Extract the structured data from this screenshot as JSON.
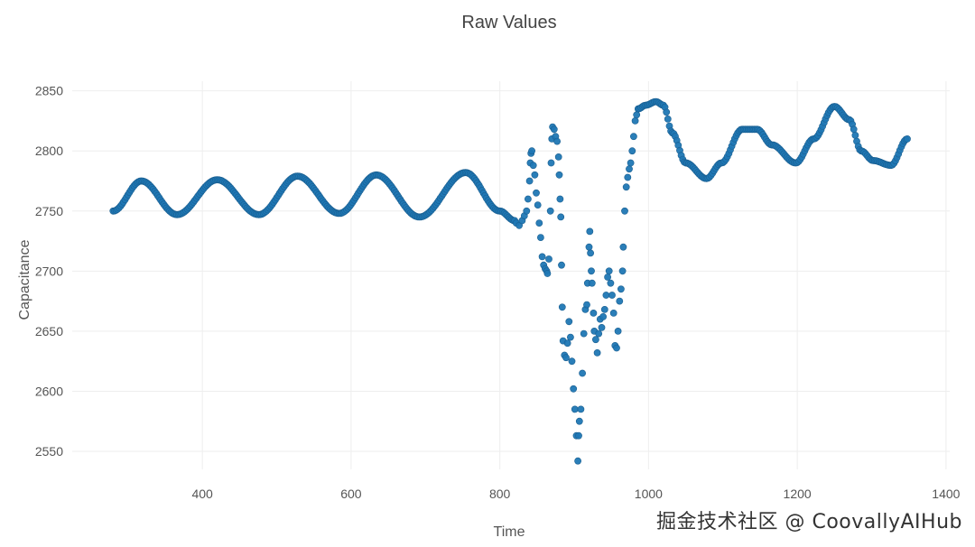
{
  "chart_data": {
    "type": "scatter",
    "title": "Raw Values",
    "xlabel": "Time",
    "ylabel": "Capacitance",
    "xlim": [
      225,
      1405
    ],
    "ylim": [
      2535,
      2858
    ],
    "xticks": [
      400,
      600,
      800,
      1000,
      1200,
      1400
    ],
    "yticks": [
      2550,
      2600,
      2650,
      2700,
      2750,
      2800,
      2850
    ],
    "grid": true,
    "color": "#1f77b4",
    "series": [
      {
        "segments": [
          {
            "kind": "wave",
            "x_start": 280,
            "x_end": 820,
            "step": 2,
            "anchors": [
              [
                280,
                2750
              ],
              [
                318,
                2775
              ],
              [
                366,
                2747
              ],
              [
                420,
                2776
              ],
              [
                476,
                2747
              ],
              [
                528,
                2779
              ],
              [
                584,
                2748
              ],
              [
                634,
                2780
              ],
              [
                692,
                2745
              ],
              [
                754,
                2782
              ],
              [
                800,
                2750
              ],
              [
                820,
                2742
              ]
            ]
          },
          {
            "kind": "points",
            "points": [
              [
                822,
                2740
              ],
              [
                826,
                2738
              ],
              [
                830,
                2742
              ],
              [
                833,
                2746
              ],
              [
                836,
                2750
              ],
              [
                838,
                2760
              ],
              [
                840,
                2775
              ],
              [
                841,
                2790
              ],
              [
                842,
                2798
              ],
              [
                843,
                2800
              ],
              [
                845,
                2788
              ],
              [
                847,
                2780
              ],
              [
                849,
                2765
              ],
              [
                851,
                2755
              ],
              [
                853,
                2740
              ],
              [
                855,
                2728
              ],
              [
                857,
                2712
              ],
              [
                859,
                2705
              ],
              [
                861,
                2702
              ],
              [
                863,
                2700
              ],
              [
                864,
                2698
              ],
              [
                866,
                2710
              ],
              [
                868,
                2750
              ],
              [
                869,
                2790
              ],
              [
                870,
                2810
              ],
              [
                871,
                2820
              ],
              [
                873,
                2818
              ],
              [
                875,
                2812
              ],
              [
                877,
                2808
              ],
              [
                879,
                2795
              ],
              [
                880,
                2780
              ],
              [
                881,
                2760
              ],
              [
                882,
                2745
              ],
              [
                883,
                2705
              ],
              [
                884,
                2670
              ],
              [
                885,
                2642
              ],
              [
                887,
                2630
              ],
              [
                889,
                2628
              ],
              [
                891,
                2640
              ],
              [
                893,
                2658
              ],
              [
                895,
                2645
              ],
              [
                897,
                2625
              ],
              [
                899,
                2602
              ],
              [
                901,
                2585
              ],
              [
                903,
                2563
              ],
              [
                905,
                2542
              ],
              [
                906,
                2563
              ],
              [
                907,
                2575
              ],
              [
                909,
                2585
              ],
              [
                911,
                2615
              ],
              [
                913,
                2648
              ],
              [
                915,
                2668
              ],
              [
                917,
                2672
              ],
              [
                918,
                2690
              ],
              [
                920,
                2720
              ],
              [
                921,
                2733
              ],
              [
                922,
                2715
              ],
              [
                923,
                2700
              ],
              [
                924,
                2690
              ],
              [
                926,
                2665
              ],
              [
                927,
                2650
              ],
              [
                929,
                2643
              ],
              [
                931,
                2632
              ],
              [
                933,
                2648
              ],
              [
                935,
                2660
              ],
              [
                937,
                2653
              ],
              [
                939,
                2662
              ],
              [
                941,
                2668
              ],
              [
                943,
                2680
              ],
              [
                945,
                2695
              ],
              [
                947,
                2700
              ],
              [
                949,
                2690
              ],
              [
                951,
                2680
              ],
              [
                953,
                2665
              ],
              [
                955,
                2638
              ],
              [
                957,
                2636
              ],
              [
                959,
                2650
              ],
              [
                961,
                2675
              ],
              [
                963,
                2685
              ],
              [
                965,
                2700
              ],
              [
                966,
                2720
              ],
              [
                968,
                2750
              ],
              [
                970,
                2770
              ],
              [
                972,
                2778
              ],
              [
                974,
                2785
              ],
              [
                976,
                2790
              ],
              [
                978,
                2800
              ],
              [
                980,
                2812
              ],
              [
                982,
                2825
              ],
              [
                984,
                2830
              ],
              [
                986,
                2835
              ]
            ]
          },
          {
            "kind": "wave",
            "x_start": 986,
            "x_end": 1348,
            "step": 2,
            "anchors": [
              [
                986,
                2835
              ],
              [
                996,
                2838
              ],
              [
                1010,
                2841
              ],
              [
                1020,
                2838
              ],
              [
                1032,
                2815
              ],
              [
                1050,
                2790
              ],
              [
                1078,
                2777
              ],
              [
                1098,
                2790
              ],
              [
                1126,
                2818
              ],
              [
                1146,
                2818
              ],
              [
                1166,
                2805
              ],
              [
                1198,
                2790
              ],
              [
                1222,
                2810
              ],
              [
                1250,
                2837
              ],
              [
                1270,
                2826
              ],
              [
                1286,
                2800
              ],
              [
                1302,
                2792
              ],
              [
                1326,
                2788
              ],
              [
                1348,
                2810
              ]
            ]
          }
        ]
      }
    ]
  },
  "watermark": "掘金技术社区 @ CoovallyAIHub"
}
